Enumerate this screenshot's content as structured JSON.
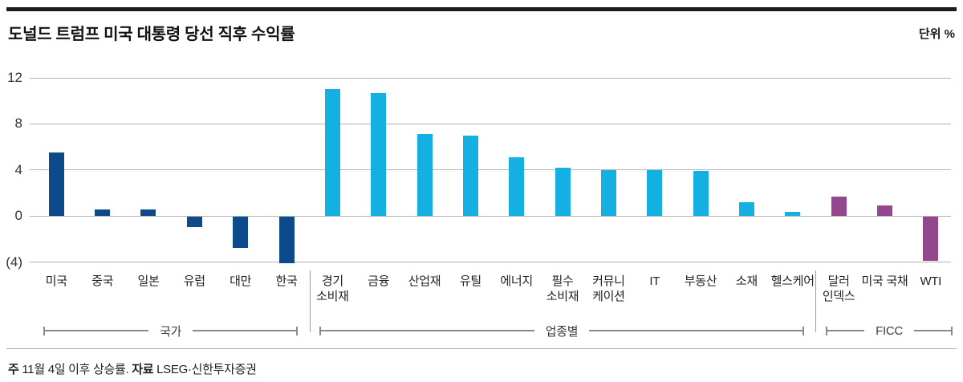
{
  "header": {
    "title": "도널드 트럼프 미국 대통령 당선 직후 수익률",
    "unit": "단위 %"
  },
  "footnote": {
    "note_label": "주",
    "note_text": " 11월 4일 이후 상승률. ",
    "source_label": "자료",
    "source_text": " LSEG·신한투자증권"
  },
  "chart_data": {
    "type": "bar",
    "title": "도널드 트럼프 미국 대통령 당선 직후 수익률",
    "unit": "단위 %",
    "ylim": [
      -4,
      12
    ],
    "grid": true,
    "legend": false,
    "yticks": [
      {
        "value": 12,
        "label": "12"
      },
      {
        "value": 8,
        "label": "8"
      },
      {
        "value": 4,
        "label": "4"
      },
      {
        "value": 0,
        "label": "0"
      },
      {
        "value": -4,
        "label": "(4)"
      }
    ],
    "groups": [
      {
        "name": "국가",
        "color": "#0d4a8c",
        "items": [
          {
            "label": "미국",
            "label_lines": [
              "미국"
            ],
            "value": 5.5
          },
          {
            "label": "중국",
            "label_lines": [
              "중국"
            ],
            "value": 0.6
          },
          {
            "label": "일본",
            "label_lines": [
              "일본"
            ],
            "value": 0.6
          },
          {
            "label": "유럽",
            "label_lines": [
              "유럽"
            ],
            "value": -0.9
          },
          {
            "label": "대만",
            "label_lines": [
              "대만"
            ],
            "value": -2.7
          },
          {
            "label": "한국",
            "label_lines": [
              "한국"
            ],
            "value": -4.0
          }
        ]
      },
      {
        "name": "업종별",
        "color": "#13b0e1",
        "items": [
          {
            "label": "경기소비재",
            "label_lines": [
              "경기",
              "소비재"
            ],
            "value": 11.0
          },
          {
            "label": "금융",
            "label_lines": [
              "금융"
            ],
            "value": 10.7
          },
          {
            "label": "산업재",
            "label_lines": [
              "산업재"
            ],
            "value": 7.1
          },
          {
            "label": "유틸",
            "label_lines": [
              "유틸"
            ],
            "value": 7.0
          },
          {
            "label": "에너지",
            "label_lines": [
              "에너지"
            ],
            "value": 5.1
          },
          {
            "label": "필수소비재",
            "label_lines": [
              "필수",
              "소비재"
            ],
            "value": 4.2
          },
          {
            "label": "커뮤니케이션",
            "label_lines": [
              "커뮤니",
              "케이션"
            ],
            "value": 4.0
          },
          {
            "label": "IT",
            "label_lines": [
              "IT"
            ],
            "value": 4.0
          },
          {
            "label": "부동산",
            "label_lines": [
              "부동산"
            ],
            "value": 3.9
          },
          {
            "label": "소재",
            "label_lines": [
              "소재"
            ],
            "value": 1.2
          },
          {
            "label": "헬스케어",
            "label_lines": [
              "헬스케어"
            ],
            "value": 0.4
          }
        ]
      },
      {
        "name": "FICC",
        "color": "#93478d",
        "items": [
          {
            "label": "달러인덱스",
            "label_lines": [
              "달러",
              "인덱스"
            ],
            "value": 1.7
          },
          {
            "label": "미국 국채",
            "label_lines": [
              "미국 국채"
            ],
            "value": 0.9
          },
          {
            "label": "WTI",
            "label_lines": [
              "WTI"
            ],
            "value": -3.8
          }
        ]
      }
    ]
  }
}
